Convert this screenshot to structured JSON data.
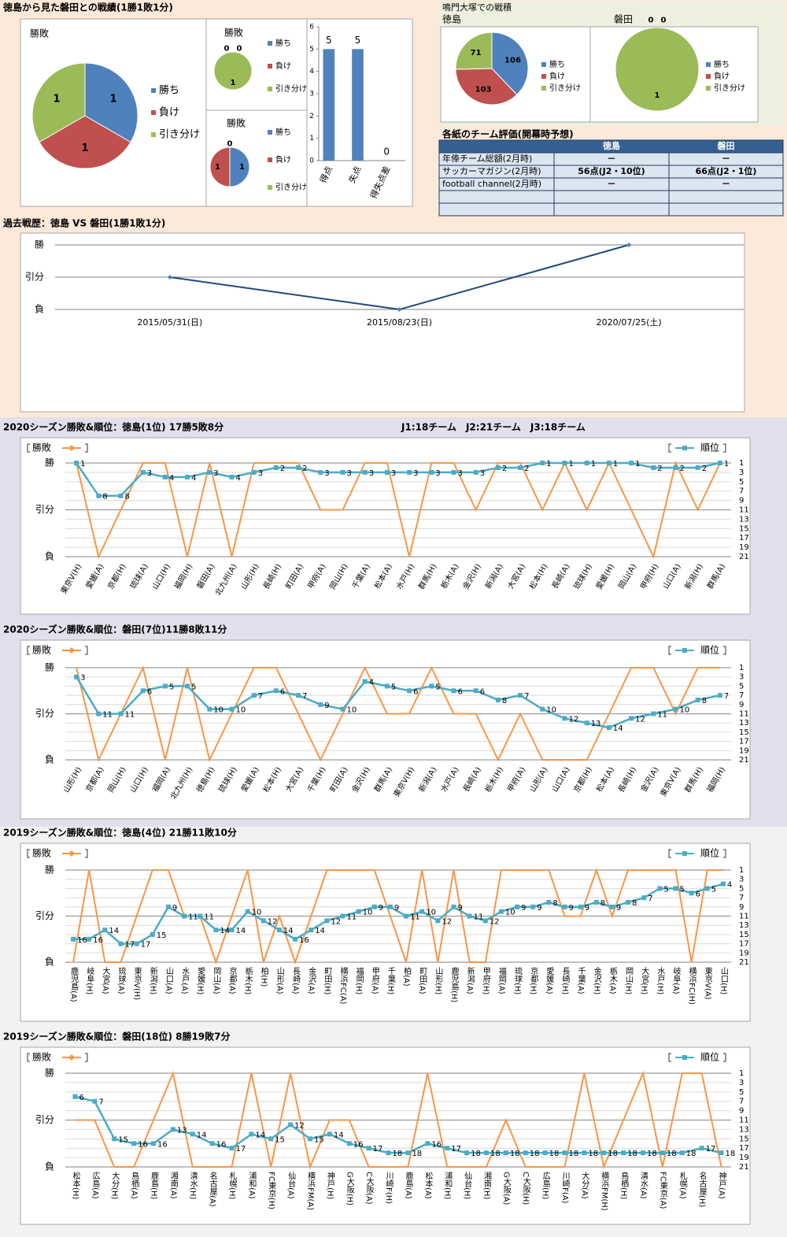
{
  "sections": [
    "徳島から見た磐田との戦績(1勝1敗1分)",
    "鳴門大塚での戦積"
  ],
  "table": {
    "title": "各紙のチーム評価(開幕時予想)",
    "columns": [
      "徳島",
      "磐田"
    ],
    "rows": [
      [
        "年俸チーム総額(2月時)",
        "－",
        "－"
      ],
      [
        "サッカーマガジン(2月時)",
        "56点(J2・10位)",
        "66点(J2・1位)"
      ],
      [
        "football channel(2月時)",
        "－",
        "－"
      ]
    ]
  },
  "chart_data": [
    {
      "type": "pie",
      "title": "勝敗",
      "categories": [
        "勝ち",
        "負け",
        "引き分け"
      ],
      "values": [
        1,
        1,
        1
      ],
      "colors": [
        "#4f81bd",
        "#c0504d",
        "#9bbb59"
      ]
    },
    {
      "type": "pie",
      "title": "勝敗",
      "categories": [
        "勝ち",
        "負け",
        "引き分け"
      ],
      "values": [
        0,
        0,
        1
      ],
      "colors": [
        "#4f81bd",
        "#c0504d",
        "#9bbb59"
      ]
    },
    {
      "type": "pie",
      "title": "勝敗",
      "categories": [
        "勝ち",
        "負け",
        "引き分け"
      ],
      "values": [
        1,
        1,
        0
      ],
      "colors": [
        "#4f81bd",
        "#c0504d",
        "#9bbb59"
      ]
    },
    {
      "type": "bar",
      "categories": [
        "得点",
        "失点",
        "得失点差"
      ],
      "values": [
        5,
        5,
        0
      ],
      "color": "#4f81bd",
      "ylim": [
        0,
        6
      ],
      "yticks": [
        0,
        1,
        2,
        3,
        4,
        5,
        6
      ]
    },
    {
      "type": "pie",
      "title": "徳島",
      "categories": [
        "勝ち",
        "負け",
        "引き分け"
      ],
      "values": [
        106,
        103,
        71
      ],
      "colors": [
        "#4f81bd",
        "#c0504d",
        "#9bbb59"
      ]
    },
    {
      "type": "pie",
      "title": "磐田",
      "categories": [
        "勝ち",
        "負け",
        "引き分け"
      ],
      "values": [
        0,
        0,
        1
      ],
      "colors": [
        "#4f81bd",
        "#c0504d",
        "#9bbb59"
      ]
    },
    {
      "type": "line",
      "title": "過去戦歴：徳島 VS 磐田(1勝1敗1分)",
      "categories": [
        "2015/05/31(日)",
        "2015/08/23(日)",
        "2020/07/25(土)"
      ],
      "values": [
        1,
        0,
        2
      ],
      "color": "#1f497d",
      "ylim": [
        0,
        2
      ],
      "yticks": [
        {
          "value": 0,
          "label": "負"
        },
        {
          "value": 1,
          "label": "引分"
        },
        {
          "value": 2,
          "label": "勝"
        }
      ],
      "grid": true
    },
    {
      "type": "line",
      "title": "2020シーズン勝敗&順位：徳島(1位) 17勝5敗8分",
      "subtitle": "J1:18チーム　J2:21チーム　J3:18チーム",
      "categories": [
        "東京V(H)",
        "愛媛(A)",
        "京都(H)",
        "琉球(A)",
        "山口(H)",
        "福岡(H)",
        "磐田(A)",
        "北九州(A)",
        "山形(H)",
        "長崎(H)",
        "町田(A)",
        "甲府(A)",
        "岡山(H)",
        "千葉(A)",
        "松本(A)",
        "水戸(H)",
        "群馬(H)",
        "栃木(A)",
        "金沢(H)",
        "新潟(A)",
        "大宮(A)",
        "松本(H)",
        "長崎(A)",
        "琉球(H)",
        "愛媛(H)",
        "岡山(A)",
        "甲府(H)",
        "山口(A)",
        "新潟(H)",
        "群馬(A)"
      ],
      "series": [
        {
          "name": "勝敗",
          "color": "#f79646",
          "values": [
            2,
            0,
            1,
            2,
            2,
            0,
            2,
            0,
            2,
            2,
            2,
            1,
            1,
            2,
            2,
            0,
            2,
            2,
            1,
            2,
            2,
            1,
            2,
            1,
            2,
            1,
            0,
            2,
            1,
            2
          ]
        },
        {
          "name": "順位",
          "color": "#4bacc6",
          "axis": "y2",
          "values": [
            1,
            8,
            8,
            3,
            4,
            4,
            3,
            4,
            3,
            2,
            2,
            3,
            3,
            3,
            3,
            3,
            3,
            3,
            3,
            2,
            2,
            1,
            1,
            1,
            1,
            1,
            2,
            2,
            2,
            1
          ]
        }
      ],
      "ylim": [
        0,
        2
      ],
      "yticks": [
        {
          "value": 0,
          "label": "負"
        },
        {
          "value": 1,
          "label": "引分"
        },
        {
          "value": 2,
          "label": "勝"
        }
      ],
      "y2lim": [
        21,
        1
      ],
      "y2ticks": [
        1,
        3,
        5,
        7,
        9,
        11,
        13,
        15,
        17,
        19,
        21
      ],
      "grid": true
    },
    {
      "type": "line",
      "title": "2020シーズン勝敗&順位：磐田(7位)11勝8敗11分",
      "categories": [
        "山形(H)",
        "京都(A)",
        "岡山(H)",
        "山口(H)",
        "福岡(A)",
        "北九州(H)",
        "徳島(H)",
        "琉球(H)",
        "愛媛(A)",
        "松本(H)",
        "大宮(A)",
        "千葉(H)",
        "町田(A)",
        "金沢(H)",
        "群馬(A)",
        "東京V(H)",
        "新潟(A)",
        "水戸(A)",
        "長崎(A)",
        "栃木(H)",
        "甲府(A)",
        "山形(A)",
        "山口(A)",
        "京都(H)",
        "松本(A)",
        "長崎(H)",
        "金沢(A)",
        "東京V(A)",
        "群馬(H)",
        "福岡(H)"
      ],
      "series": [
        {
          "name": "勝敗",
          "color": "#f79646",
          "values": [
            2,
            0,
            1,
            2,
            0,
            2,
            0,
            1,
            2,
            2,
            1,
            0,
            1,
            2,
            1,
            1,
            2,
            1,
            1,
            0,
            1,
            0,
            0,
            0,
            1,
            2,
            2,
            1,
            2,
            2
          ]
        },
        {
          "name": "順位",
          "color": "#4bacc6",
          "axis": "y2",
          "values": [
            3,
            11,
            11,
            6,
            5,
            5,
            10,
            10,
            7,
            6,
            7,
            9,
            10,
            4,
            5,
            6,
            5,
            6,
            6,
            8,
            7,
            10,
            12,
            13,
            14,
            12,
            11,
            10,
            8,
            7
          ]
        }
      ],
      "ylim": [
        0,
        2
      ],
      "yticks": [
        {
          "value": 0,
          "label": "負"
        },
        {
          "value": 1,
          "label": "引分"
        },
        {
          "value": 2,
          "label": "勝"
        }
      ],
      "y2lim": [
        21,
        1
      ],
      "y2ticks": [
        1,
        3,
        5,
        7,
        9,
        11,
        13,
        15,
        17,
        19,
        21
      ],
      "grid": true
    },
    {
      "type": "line",
      "title": "2019シーズン勝敗&順位：徳島(4位) 21勝11敗10分",
      "categories": [
        "鹿児島(A)",
        "岐阜(H)",
        "大宮(A)",
        "琉球(A)",
        "東京V(H)",
        "新潟(H)",
        "山口(A)",
        "水戸(A)",
        "愛媛(H)",
        "岡山(A)",
        "京都(A)",
        "栃木(H)",
        "柏(H)",
        "山形(A)",
        "長崎(A)",
        "金沢(A)",
        "町田(H)",
        "横浜FC(A)",
        "福岡(H)",
        "甲府(A)",
        "千葉(H)",
        "柏(A)",
        "町田(A)",
        "山形(H)",
        "鹿児島(H)",
        "新潟(A)",
        "甲府(H)",
        "福岡(A)",
        "琉球(H)",
        "京都(H)",
        "愛媛(A)",
        "長崎(H)",
        "千葉(A)",
        "金沢(H)",
        "栃木(A)",
        "岡山(H)",
        "大宮(H)",
        "水戸(H)",
        "岐阜(A)",
        "横浜FC(H)",
        "東京V(A)",
        "山口(H)"
      ],
      "series": [
        {
          "name": "勝敗",
          "color": "#f79646",
          "values": [
            0,
            2,
            0,
            0,
            1,
            2,
            2,
            1,
            1,
            0,
            1,
            2,
            0,
            1,
            0,
            1,
            2,
            2,
            2,
            2,
            1,
            0,
            2,
            0,
            2,
            0,
            0,
            2,
            2,
            2,
            2,
            1,
            1,
            2,
            1,
            2,
            2,
            2,
            2,
            0,
            2,
            2
          ]
        },
        {
          "name": "順位",
          "color": "#4bacc6",
          "axis": "y2",
          "values": [
            16,
            16,
            14,
            17,
            17,
            15,
            9,
            11,
            11,
            14,
            14,
            10,
            12,
            14,
            16,
            14,
            12,
            11,
            10,
            9,
            9,
            11,
            10,
            12,
            9,
            11,
            12,
            10,
            9,
            9,
            8,
            9,
            9,
            8,
            9,
            8,
            7,
            5,
            5,
            6,
            5,
            4
          ]
        }
      ],
      "ylim": [
        0,
        2
      ],
      "yticks": [
        {
          "value": 0,
          "label": "負"
        },
        {
          "value": 1,
          "label": "引分"
        },
        {
          "value": 2,
          "label": "勝"
        }
      ],
      "y2lim": [
        21,
        1
      ],
      "y2ticks": [
        1,
        3,
        5,
        7,
        9,
        11,
        13,
        15,
        17,
        19,
        21
      ],
      "grid": true
    },
    {
      "type": "line",
      "title": "2019シーズン勝敗&順位：磐田(18位) 8勝19敗7分",
      "categories": [
        "松本(H)",
        "広島(A)",
        "大分(H)",
        "鳥栖(A)",
        "鹿島(H)",
        "湘南(A)",
        "清水(H)",
        "名古屋(A)",
        "札幌(H)",
        "浦和(A)",
        "FC東京(H)",
        "仙台(A)",
        "横浜FM(A)",
        "神戸(H)",
        "G大阪(H)",
        "C大阪(A)",
        "川崎F(H)",
        "鹿島(A)",
        "松本(A)",
        "浦和(H)",
        "仙台(H)",
        "湘南(H)",
        "G大阪(A)",
        "C大阪(H)",
        "広島(H)",
        "川崎F(A)",
        "大分(A)",
        "横浜FM(H)",
        "鳥栖(H)",
        "清水(A)",
        "FC東京(A)",
        "札幌(A)",
        "名古屋(H)",
        "神戸(A)"
      ],
      "series": [
        {
          "name": "勝敗",
          "color": "#f79646",
          "values": [
            1,
            1,
            0,
            0,
            1,
            2,
            0,
            0,
            0,
            2,
            0,
            2,
            0,
            1,
            1,
            0,
            0,
            0,
            2,
            0,
            0,
            0,
            1,
            0,
            0,
            0,
            2,
            0,
            1,
            2,
            0,
            2,
            2,
            0
          ]
        },
        {
          "name": "順位",
          "color": "#4bacc6",
          "axis": "y2",
          "values": [
            6,
            7,
            15,
            16,
            16,
            13,
            14,
            16,
            17,
            14,
            15,
            12,
            15,
            14,
            16,
            17,
            18,
            18,
            16,
            17,
            18,
            18,
            18,
            18,
            18,
            18,
            18,
            18,
            18,
            18,
            18,
            18,
            17,
            18
          ]
        }
      ],
      "ylim": [
        0,
        2
      ],
      "yticks": [
        {
          "value": 0,
          "label": "負"
        },
        {
          "value": 1,
          "label": "引分"
        },
        {
          "value": 2,
          "label": "勝"
        }
      ],
      "y2lim": [
        21,
        1
      ],
      "y2ticks": [
        1,
        3,
        5,
        7,
        9,
        11,
        13,
        15,
        17,
        19,
        21
      ],
      "grid": true
    }
  ]
}
